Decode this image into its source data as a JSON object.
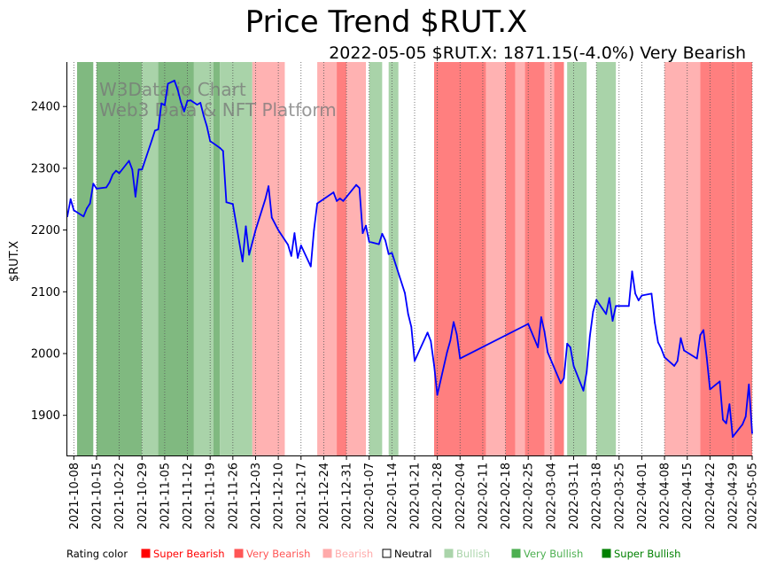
{
  "chart_data": {
    "type": "line",
    "title": "Price Trend $RUT.X",
    "subtitle": "2022-05-05 $RUT.X: 1871.15(-4.0%) Very Bearish",
    "ylabel": "$RUT.X",
    "xlabel": "",
    "x_range": [
      "2021-10-06",
      "2022-05-05"
    ],
    "ylim": [
      1835,
      2472
    ],
    "y_ticks": [
      1900,
      2000,
      2100,
      2200,
      2300,
      2400
    ],
    "x_ticks": [
      "2021-10-08",
      "2021-10-15",
      "2021-10-22",
      "2021-10-29",
      "2021-11-05",
      "2021-11-12",
      "2021-11-19",
      "2021-11-26",
      "2021-12-03",
      "2021-12-10",
      "2021-12-17",
      "2021-12-24",
      "2021-12-31",
      "2022-01-07",
      "2022-01-14",
      "2022-01-21",
      "2022-01-28",
      "2022-02-04",
      "2022-02-11",
      "2022-02-18",
      "2022-02-25",
      "2022-03-04",
      "2022-03-11",
      "2022-03-18",
      "2022-03-25",
      "2022-04-01",
      "2022-04-08",
      "2022-04-15",
      "2022-04-22",
      "2022-04-29",
      "2022-05-05"
    ],
    "grid": "vertical dotted lines at ticks",
    "watermark": [
      "W3Data.io Chart",
      "Web3 Data & NFT Platform"
    ],
    "series": [
      {
        "color": "#0000ff",
        "points": [
          [
            "2021-10-06",
            2222
          ],
          [
            "2021-10-07",
            2250
          ],
          [
            "2021-10-08",
            2232
          ],
          [
            "2021-10-11",
            2222
          ],
          [
            "2021-10-12",
            2235
          ],
          [
            "2021-10-13",
            2243
          ],
          [
            "2021-10-14",
            2275
          ],
          [
            "2021-10-15",
            2267
          ],
          [
            "2021-10-18",
            2269
          ],
          [
            "2021-10-19",
            2277
          ],
          [
            "2021-10-20",
            2290
          ],
          [
            "2021-10-21",
            2296
          ],
          [
            "2021-10-22",
            2292
          ],
          [
            "2021-10-25",
            2312
          ],
          [
            "2021-10-26",
            2298
          ],
          [
            "2021-10-27",
            2254
          ],
          [
            "2021-10-28",
            2298
          ],
          [
            "2021-10-29",
            2298
          ],
          [
            "2021-11-01",
            2345
          ],
          [
            "2021-11-02",
            2361
          ],
          [
            "2021-11-03",
            2363
          ],
          [
            "2021-11-04",
            2405
          ],
          [
            "2021-11-05",
            2402
          ],
          [
            "2021-11-06",
            2437
          ],
          [
            "2021-11-08",
            2442
          ],
          [
            "2021-11-09",
            2427
          ],
          [
            "2021-11-10",
            2407
          ],
          [
            "2021-11-11",
            2392
          ],
          [
            "2021-11-12",
            2409
          ],
          [
            "2021-11-13",
            2410
          ],
          [
            "2021-11-15",
            2403
          ],
          [
            "2021-11-16",
            2406
          ],
          [
            "2021-11-17",
            2385
          ],
          [
            "2021-11-18",
            2368
          ],
          [
            "2021-11-19",
            2344
          ],
          [
            "2021-11-22",
            2333
          ],
          [
            "2021-11-23",
            2328
          ],
          [
            "2021-11-24",
            2245
          ],
          [
            "2021-11-26",
            2242
          ],
          [
            "2021-11-29",
            2149
          ],
          [
            "2021-11-30",
            2206
          ],
          [
            "2021-12-01",
            2160
          ],
          [
            "2021-12-03",
            2200
          ],
          [
            "2021-12-06",
            2250
          ],
          [
            "2021-12-07",
            2271
          ],
          [
            "2021-12-08",
            2220
          ],
          [
            "2021-12-10",
            2200
          ],
          [
            "2021-12-13",
            2176
          ],
          [
            "2021-12-14",
            2158
          ],
          [
            "2021-12-15",
            2195
          ],
          [
            "2021-12-16",
            2155
          ],
          [
            "2021-12-17",
            2175
          ],
          [
            "2021-12-20",
            2141
          ],
          [
            "2021-12-21",
            2200
          ],
          [
            "2021-12-22",
            2243
          ],
          [
            "2021-12-27",
            2261
          ],
          [
            "2021-12-28",
            2247
          ],
          [
            "2021-12-29",
            2251
          ],
          [
            "2021-12-30",
            2247
          ],
          [
            "2022-01-03",
            2273
          ],
          [
            "2022-01-04",
            2268
          ],
          [
            "2022-01-05",
            2195
          ],
          [
            "2022-01-06",
            2207
          ],
          [
            "2022-01-07",
            2181
          ],
          [
            "2022-01-10",
            2177
          ],
          [
            "2022-01-11",
            2194
          ],
          [
            "2022-01-12",
            2183
          ],
          [
            "2022-01-13",
            2161
          ],
          [
            "2022-01-14",
            2163
          ],
          [
            "2022-01-18",
            2098
          ],
          [
            "2022-01-19",
            2064
          ],
          [
            "2022-01-20",
            2043
          ],
          [
            "2022-01-21",
            1988
          ],
          [
            "2022-01-25",
            2034
          ],
          [
            "2022-01-26",
            2020
          ],
          [
            "2022-01-27",
            1981
          ],
          [
            "2022-01-28",
            1933
          ],
          [
            "2022-01-31",
            2002
          ],
          [
            "2022-02-01",
            2021
          ],
          [
            "2022-02-02",
            2051
          ],
          [
            "2022-02-03",
            2031
          ],
          [
            "2022-02-04",
            1992
          ],
          [
            "2022-02-25",
            2048
          ],
          [
            "2022-02-28",
            2010
          ],
          [
            "2022-03-01",
            2059
          ],
          [
            "2022-03-02",
            2036
          ],
          [
            "2022-03-03",
            2002
          ],
          [
            "2022-03-07",
            1952
          ],
          [
            "2022-03-08",
            1960
          ],
          [
            "2022-03-09",
            2016
          ],
          [
            "2022-03-10",
            2010
          ],
          [
            "2022-03-11",
            1980
          ],
          [
            "2022-03-14",
            1940
          ],
          [
            "2022-03-15",
            1970
          ],
          [
            "2022-03-16",
            2028
          ],
          [
            "2022-03-17",
            2068
          ],
          [
            "2022-03-18",
            2087
          ],
          [
            "2022-03-21",
            2064
          ],
          [
            "2022-03-22",
            2090
          ],
          [
            "2022-03-23",
            2053
          ],
          [
            "2022-03-24",
            2077
          ],
          [
            "2022-03-25",
            2077
          ],
          [
            "2022-03-28",
            2077
          ],
          [
            "2022-03-29",
            2133
          ],
          [
            "2022-03-30",
            2097
          ],
          [
            "2022-03-31",
            2086
          ],
          [
            "2022-04-01",
            2094
          ],
          [
            "2022-04-04",
            2097
          ],
          [
            "2022-04-05",
            2050
          ],
          [
            "2022-04-06",
            2018
          ],
          [
            "2022-04-07",
            2008
          ],
          [
            "2022-04-08",
            1994
          ],
          [
            "2022-04-11",
            1980
          ],
          [
            "2022-04-12",
            1988
          ],
          [
            "2022-04-13",
            2025
          ],
          [
            "2022-04-14",
            2005
          ],
          [
            "2022-04-18",
            1992
          ],
          [
            "2022-04-19",
            2030
          ],
          [
            "2022-04-20",
            2038
          ],
          [
            "2022-04-21",
            1994
          ],
          [
            "2022-04-22",
            1942
          ],
          [
            "2022-04-25",
            1955
          ],
          [
            "2022-04-26",
            1893
          ],
          [
            "2022-04-27",
            1887
          ],
          [
            "2022-04-28",
            1918
          ],
          [
            "2022-04-29",
            1865
          ],
          [
            "2022-05-02",
            1885
          ],
          [
            "2022-05-03",
            1898
          ],
          [
            "2022-05-04",
            1950
          ],
          [
            "2022-05-05",
            1871
          ]
        ]
      }
    ],
    "rating_bands": [
      {
        "start": "2021-10-09",
        "end": "2021-10-14",
        "rating": "Very Bullish"
      },
      {
        "start": "2021-10-15",
        "end": "2021-10-29",
        "rating": "Very Bullish"
      },
      {
        "start": "2021-10-29",
        "end": "2021-11-03",
        "rating": "Bullish"
      },
      {
        "start": "2021-11-03",
        "end": "2021-11-14",
        "rating": "Very Bullish"
      },
      {
        "start": "2021-11-14",
        "end": "2021-11-20",
        "rating": "Bullish"
      },
      {
        "start": "2021-11-20",
        "end": "2021-11-22",
        "rating": "Very Bullish"
      },
      {
        "start": "2021-11-22",
        "end": "2021-12-02",
        "rating": "Bullish"
      },
      {
        "start": "2021-12-02",
        "end": "2021-12-12",
        "rating": "Bearish"
      },
      {
        "start": "2021-12-22",
        "end": "2021-12-28",
        "rating": "Bearish"
      },
      {
        "start": "2021-12-28",
        "end": "2021-12-31",
        "rating": "Very Bearish"
      },
      {
        "start": "2021-12-31",
        "end": "2022-01-06",
        "rating": "Bearish"
      },
      {
        "start": "2022-01-07",
        "end": "2022-01-11",
        "rating": "Bullish"
      },
      {
        "start": "2022-01-13",
        "end": "2022-01-16",
        "rating": "Bullish"
      },
      {
        "start": "2022-01-27",
        "end": "2022-02-12",
        "rating": "Very Bearish"
      },
      {
        "start": "2022-02-12",
        "end": "2022-02-18",
        "rating": "Bearish"
      },
      {
        "start": "2022-02-18",
        "end": "2022-02-21",
        "rating": "Very Bearish"
      },
      {
        "start": "2022-02-21",
        "end": "2022-02-24",
        "rating": "Bearish"
      },
      {
        "start": "2022-02-24",
        "end": "2022-03-02",
        "rating": "Very Bearish"
      },
      {
        "start": "2022-03-02",
        "end": "2022-03-05",
        "rating": "Bearish"
      },
      {
        "start": "2022-03-05",
        "end": "2022-03-08",
        "rating": "Very Bearish"
      },
      {
        "start": "2022-03-09",
        "end": "2022-03-15",
        "rating": "Bullish"
      },
      {
        "start": "2022-03-18",
        "end": "2022-03-24",
        "rating": "Bullish"
      },
      {
        "start": "2022-04-08",
        "end": "2022-04-19",
        "rating": "Bearish"
      },
      {
        "start": "2022-04-19",
        "end": "2022-04-30",
        "rating": "Very Bearish"
      },
      {
        "start": "2022-04-30",
        "end": "2022-05-05",
        "rating": "Very Bearish"
      }
    ],
    "rating_colors": {
      "Super Bearish": "#ff0000",
      "Very Bearish": "#ff7f7f",
      "Bearish": "#ffb2b2",
      "Neutral": "#ffffff",
      "Bullish": "#a9d3a9",
      "Very Bullish": "#80b980",
      "Super Bullish": "#008000"
    },
    "legend": {
      "title": "Rating color",
      "items": [
        {
          "label": "Super Bearish",
          "color": "#ff0000"
        },
        {
          "label": "Very Bearish",
          "color": "#ff5555"
        },
        {
          "label": "Bearish",
          "color": "#ffaaaa"
        },
        {
          "label": "Neutral",
          "color": "#000000"
        },
        {
          "label": "Bullish",
          "color": "#aad4aa"
        },
        {
          "label": "Very Bullish",
          "color": "#4caf50"
        },
        {
          "label": "Super Bullish",
          "color": "#008000"
        }
      ]
    }
  }
}
